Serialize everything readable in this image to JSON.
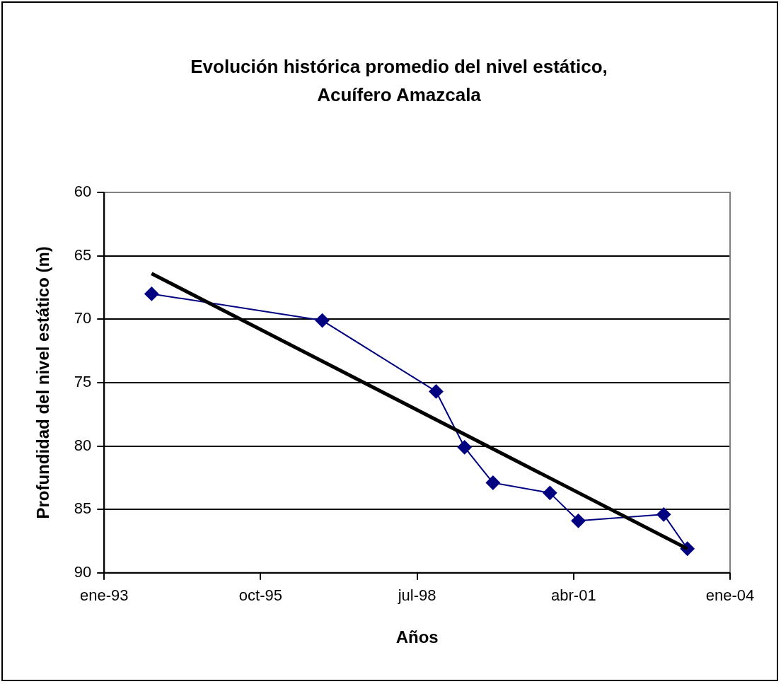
{
  "chart_data": {
    "type": "line",
    "title": "Evolución histórica promedio del nivel estático, Acuífero Amazcala",
    "xlabel": "Años",
    "ylabel": "Profundidad del nivel estático (m)",
    "xlim": [
      "1993-01",
      "2004-01"
    ],
    "xticks": [
      {
        "value": "1993-01",
        "label": "ene-93"
      },
      {
        "value": "1995-10",
        "label": "oct-95"
      },
      {
        "value": "1998-07",
        "label": "jul-98"
      },
      {
        "value": "2001-04",
        "label": "abr-01"
      },
      {
        "value": "2004-01",
        "label": "ene-04"
      }
    ],
    "ylim": [
      90,
      60
    ],
    "yticks": [
      60,
      65,
      70,
      75,
      80,
      85,
      90
    ],
    "grid": "y",
    "legend": false,
    "marker": "diamond",
    "line_style": "solid",
    "series": [
      {
        "color": "#000080",
        "x": [
          "1993-11",
          "1996-11",
          "1998-11",
          "1999-05",
          "1999-11",
          "2000-11",
          "2001-05",
          "2002-11",
          "2003-04"
        ],
        "values": [
          68.0,
          70.1,
          75.7,
          80.1,
          82.9,
          83.7,
          85.9,
          85.4,
          88.1
        ]
      },
      {
        "type": "line",
        "color": "#000000",
        "marker": "none",
        "x": [
          "1993-11",
          "2003-04"
        ],
        "values": [
          66.4,
          88.1
        ]
      }
    ]
  }
}
